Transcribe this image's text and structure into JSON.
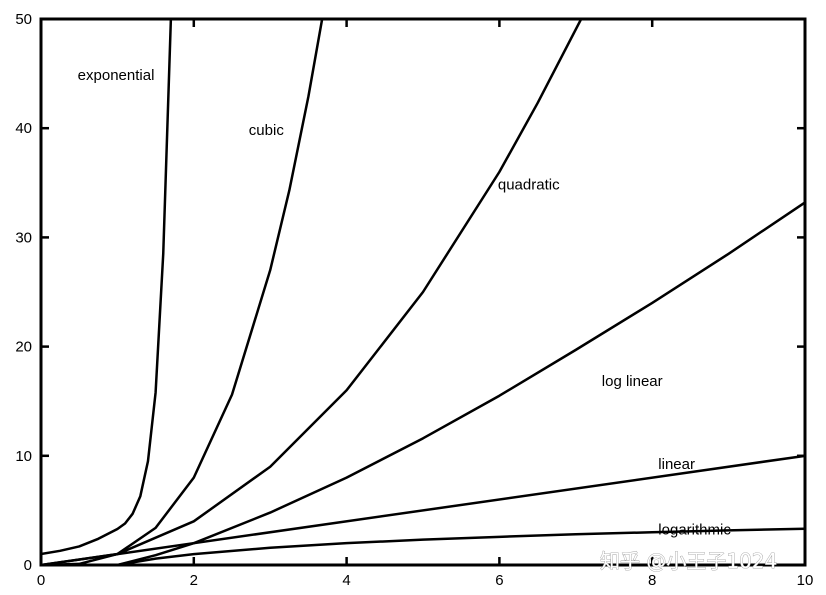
{
  "chart_data": {
    "type": "line",
    "xlim": [
      0,
      10
    ],
    "ylim": [
      0,
      50
    ],
    "x_ticks": [
      0,
      2,
      4,
      6,
      8,
      10
    ],
    "y_ticks": [
      0,
      10,
      20,
      30,
      40,
      50
    ],
    "x_tick_labels": [
      "0",
      "2",
      "4",
      "6",
      "8",
      "10"
    ],
    "y_tick_labels": [
      "0",
      "10",
      "20",
      "30",
      "40",
      "50"
    ],
    "grid": false,
    "legend": "none",
    "line_color": "#000000",
    "series": [
      {
        "name": "exponential",
        "x": [
          0,
          0.25,
          0.5,
          0.75,
          1.0,
          1.1,
          1.2,
          1.3,
          1.4,
          1.5,
          1.6,
          1.7
        ],
        "y": [
          1.0,
          1.3,
          1.7,
          2.4,
          3.3,
          3.8,
          4.7,
          6.3,
          9.5,
          15.8,
          28.5,
          50.0
        ]
      },
      {
        "name": "cubic",
        "x": [
          0,
          0.5,
          1.0,
          1.5,
          2.0,
          2.5,
          3.0,
          3.25,
          3.5,
          3.68
        ],
        "y": [
          0,
          0.1,
          1.0,
          3.4,
          8.0,
          15.6,
          27.0,
          34.3,
          42.9,
          50.0
        ]
      },
      {
        "name": "quadratic",
        "x": [
          0,
          1,
          2,
          3,
          4,
          5,
          6,
          6.5,
          7.07
        ],
        "y": [
          0,
          1,
          4,
          9,
          16,
          25,
          36,
          42.3,
          50.0
        ]
      },
      {
        "name": "log linear",
        "x": [
          1,
          1.5,
          2,
          3,
          4,
          5,
          6,
          7,
          8,
          9,
          10
        ],
        "y": [
          0,
          0.9,
          2.0,
          4.8,
          8.0,
          11.6,
          15.5,
          19.7,
          24.0,
          28.5,
          33.2
        ]
      },
      {
        "name": "linear",
        "x": [
          0,
          10
        ],
        "y": [
          0,
          10
        ]
      },
      {
        "name": "logarithmic",
        "x": [
          1,
          1.5,
          2,
          3,
          4,
          5,
          6,
          7,
          8,
          9,
          10
        ],
        "y": [
          0,
          0.58,
          1.0,
          1.58,
          2.0,
          2.32,
          2.58,
          2.81,
          3.0,
          3.17,
          3.32
        ]
      }
    ]
  },
  "watermark": "知乎 @小王子1024"
}
